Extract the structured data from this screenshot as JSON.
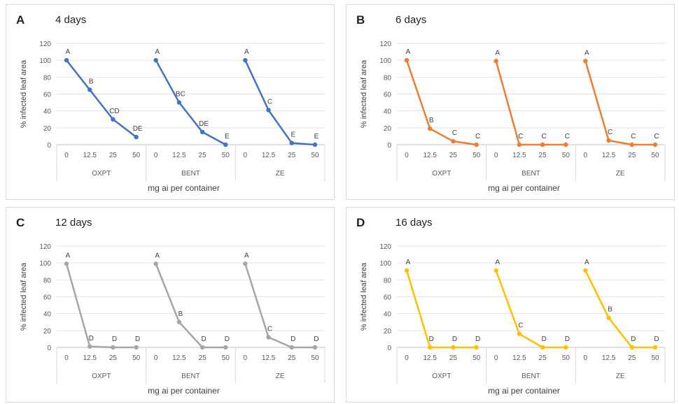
{
  "shared": {
    "ylabel": "% infected leaf area",
    "xlabel": "mg ai per container",
    "yticks": [
      0,
      20,
      40,
      60,
      80,
      100,
      120
    ],
    "doses": [
      "0",
      "12.5",
      "25",
      "50"
    ],
    "groups": [
      "OXPT",
      "BENT",
      "ZE"
    ]
  },
  "chart_data": [
    {
      "panel": "A",
      "title": "4 days",
      "type": "line",
      "color": "#4472c4",
      "ylim": [
        0,
        120
      ],
      "series": [
        {
          "group": "OXPT",
          "values": [
            100,
            65,
            30,
            9
          ],
          "labels": [
            "A",
            "B",
            "CD",
            "DE"
          ]
        },
        {
          "group": "BENT",
          "values": [
            100,
            50,
            15,
            0
          ],
          "labels": [
            "A",
            "BC",
            "DE",
            "E"
          ]
        },
        {
          "group": "ZE",
          "values": [
            100,
            41,
            2,
            0
          ],
          "labels": [
            "A",
            "C",
            "E",
            "E"
          ]
        }
      ]
    },
    {
      "panel": "B",
      "title": "6 days",
      "type": "line",
      "color": "#ed7d31",
      "ylim": [
        0,
        120
      ],
      "series": [
        {
          "group": "OXPT",
          "values": [
            100,
            19,
            4,
            0
          ],
          "labels": [
            "A",
            "B",
            "C",
            "C"
          ]
        },
        {
          "group": "BENT",
          "values": [
            99,
            0,
            0,
            0
          ],
          "labels": [
            "A",
            "C",
            "C",
            "C"
          ]
        },
        {
          "group": "ZE",
          "values": [
            99,
            5,
            0,
            0
          ],
          "labels": [
            "A",
            "C",
            "C",
            "C"
          ]
        }
      ]
    },
    {
      "panel": "C",
      "title": "12 days",
      "type": "line",
      "color": "#a5a5a5",
      "ylim": [
        0,
        120
      ],
      "series": [
        {
          "group": "OXPT",
          "values": [
            99,
            1,
            0,
            0
          ],
          "labels": [
            "A",
            "D",
            "D",
            "D"
          ]
        },
        {
          "group": "BENT",
          "values": [
            99,
            30,
            0,
            0
          ],
          "labels": [
            "A",
            "B",
            "D",
            "D"
          ]
        },
        {
          "group": "ZE",
          "values": [
            99,
            12,
            0,
            0
          ],
          "labels": [
            "A",
            "C",
            "D",
            "D"
          ]
        }
      ]
    },
    {
      "panel": "D",
      "title": "16 days",
      "type": "line",
      "color": "#ffc000",
      "ylim": [
        0,
        120
      ],
      "series": [
        {
          "group": "OXPT",
          "values": [
            91,
            0,
            0,
            0
          ],
          "labels": [
            "A",
            "D",
            "D",
            "D"
          ]
        },
        {
          "group": "BENT",
          "values": [
            91,
            16,
            0,
            0
          ],
          "labels": [
            "A",
            "C",
            "D",
            "D"
          ]
        },
        {
          "group": "ZE",
          "values": [
            91,
            35,
            0,
            0
          ],
          "labels": [
            "A",
            "B",
            "D",
            "D"
          ]
        }
      ]
    }
  ]
}
